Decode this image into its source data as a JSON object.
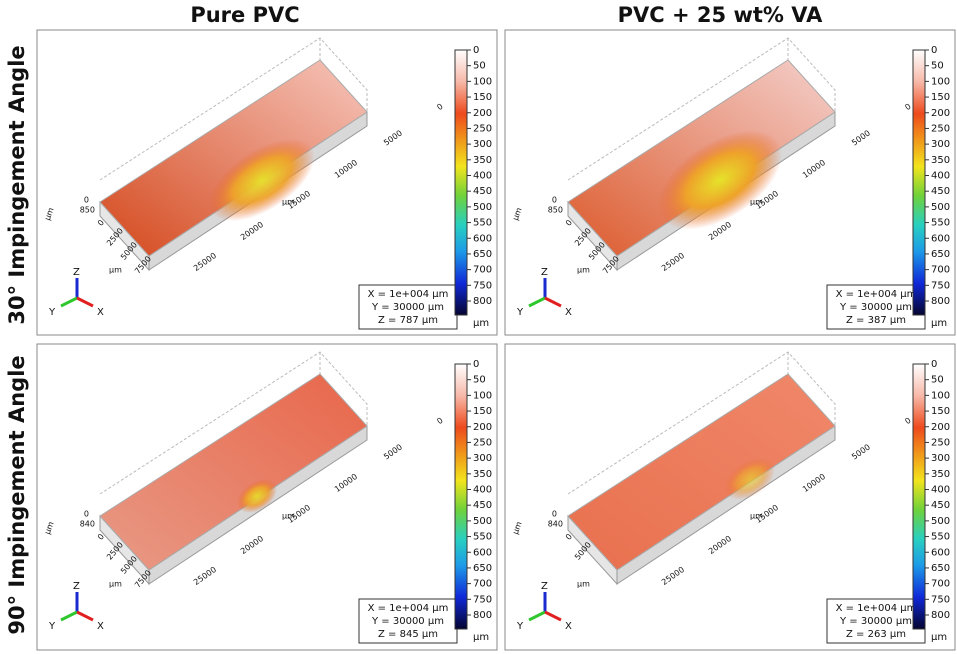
{
  "column_titles": [
    "Pure PVC",
    "PVC + 25 wt% VA"
  ],
  "row_titles": [
    "30° Impingement Angle",
    "90° Impingement Angle"
  ],
  "colorbar": {
    "ticks": [
      0,
      50,
      100,
      150,
      200,
      250,
      300,
      350,
      400,
      450,
      500,
      550,
      600,
      650,
      700,
      750,
      800
    ],
    "unit": "µm"
  },
  "axes": {
    "unit": "µm",
    "z_zero": 0,
    "y_ticks": [
      25000,
      20000,
      15000,
      10000,
      5000,
      0
    ],
    "triad": [
      "Z",
      "Y",
      "X"
    ]
  },
  "panels": [
    {
      "z_max": 850,
      "x_ticks": [
        0,
        2500,
        5000,
        7500
      ],
      "info": [
        "X = 1e+004 µm",
        "Y = 30000 µm",
        "Z = 787 µm"
      ]
    },
    {
      "z_max": 850,
      "x_ticks": [
        0,
        2500,
        5000,
        7500
      ],
      "info": [
        "X = 1e+004 µm",
        "Y = 30000 µm",
        "Z = 387 µm"
      ]
    },
    {
      "z_max": 840,
      "x_ticks": [
        0,
        2500,
        5000,
        7500
      ],
      "info": [
        "X = 1e+004 µm",
        "Y = 30000 µm",
        "Z = 845 µm"
      ]
    },
    {
      "z_max": 840,
      "x_ticks": [
        0,
        5000
      ],
      "info": [
        "X = 1e+004 µm",
        "Y = 30000 µm",
        "Z = 263 µm"
      ]
    }
  ]
}
